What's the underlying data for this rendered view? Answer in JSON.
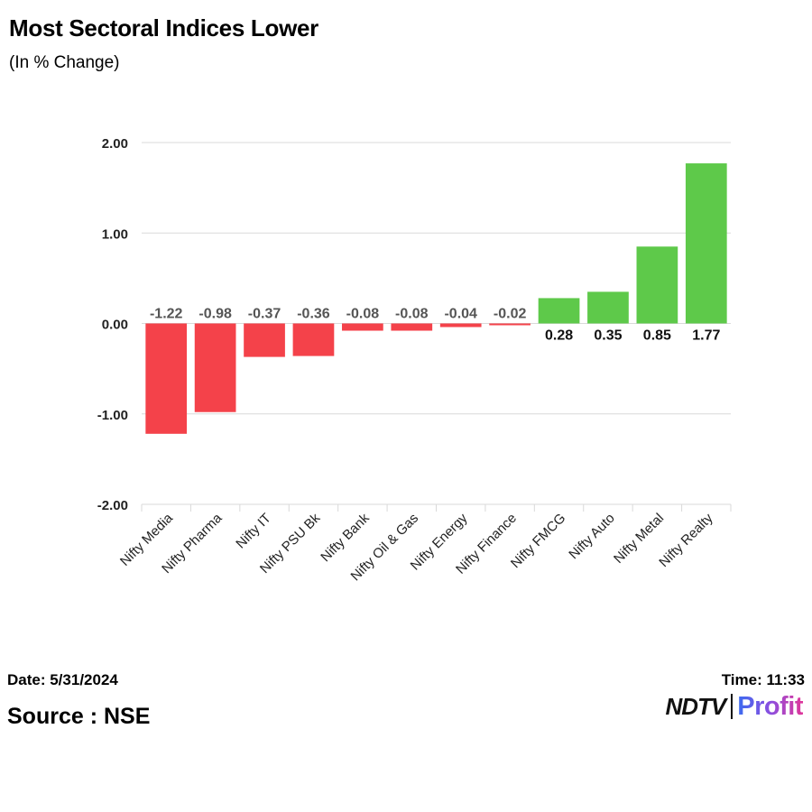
{
  "header": {
    "title": "Most Sectoral Indices Lower",
    "subtitle": "(In % Change)"
  },
  "footer": {
    "date": "Date: 5/31/2024",
    "time": "Time: 11:33",
    "source": "Source : NSE",
    "logo_text_primary": "NDTV",
    "logo_text_secondary": "Profit"
  },
  "colors": {
    "negative": "#f4424a",
    "positive": "#5ec94a",
    "grid": "#d9d9d9"
  },
  "chart_data": {
    "type": "bar",
    "title": "Most Sectoral Indices Lower",
    "subtitle": "(In % Change)",
    "xlabel": "",
    "ylabel": "",
    "ylim": [
      -2.0,
      2.0
    ],
    "yticks": [
      "2.00",
      "1.00",
      "0.00",
      "-1.00",
      "-2.00"
    ],
    "categories": [
      "Nifty Media",
      "Nifty Pharma",
      "Nifty IT",
      "Nifty PSU Bk",
      "Nifty Bank",
      "Nifty Oil & Gas",
      "Nifty Energy",
      "Nifty Finance",
      "Nifty FMCG",
      "Nifty Auto",
      "Nifty Metal",
      "Nifty Realty"
    ],
    "values": [
      -1.22,
      -0.98,
      -0.37,
      -0.36,
      -0.08,
      -0.08,
      -0.04,
      -0.02,
      0.28,
      0.35,
      0.85,
      1.77
    ],
    "labels": [
      "-1.22",
      "-0.98",
      "-0.37",
      "-0.36",
      "-0.08",
      "-0.08",
      "-0.04",
      "-0.02",
      "0.28",
      "0.35",
      "0.85",
      "1.77"
    ],
    "grid": true,
    "legend": "none"
  }
}
